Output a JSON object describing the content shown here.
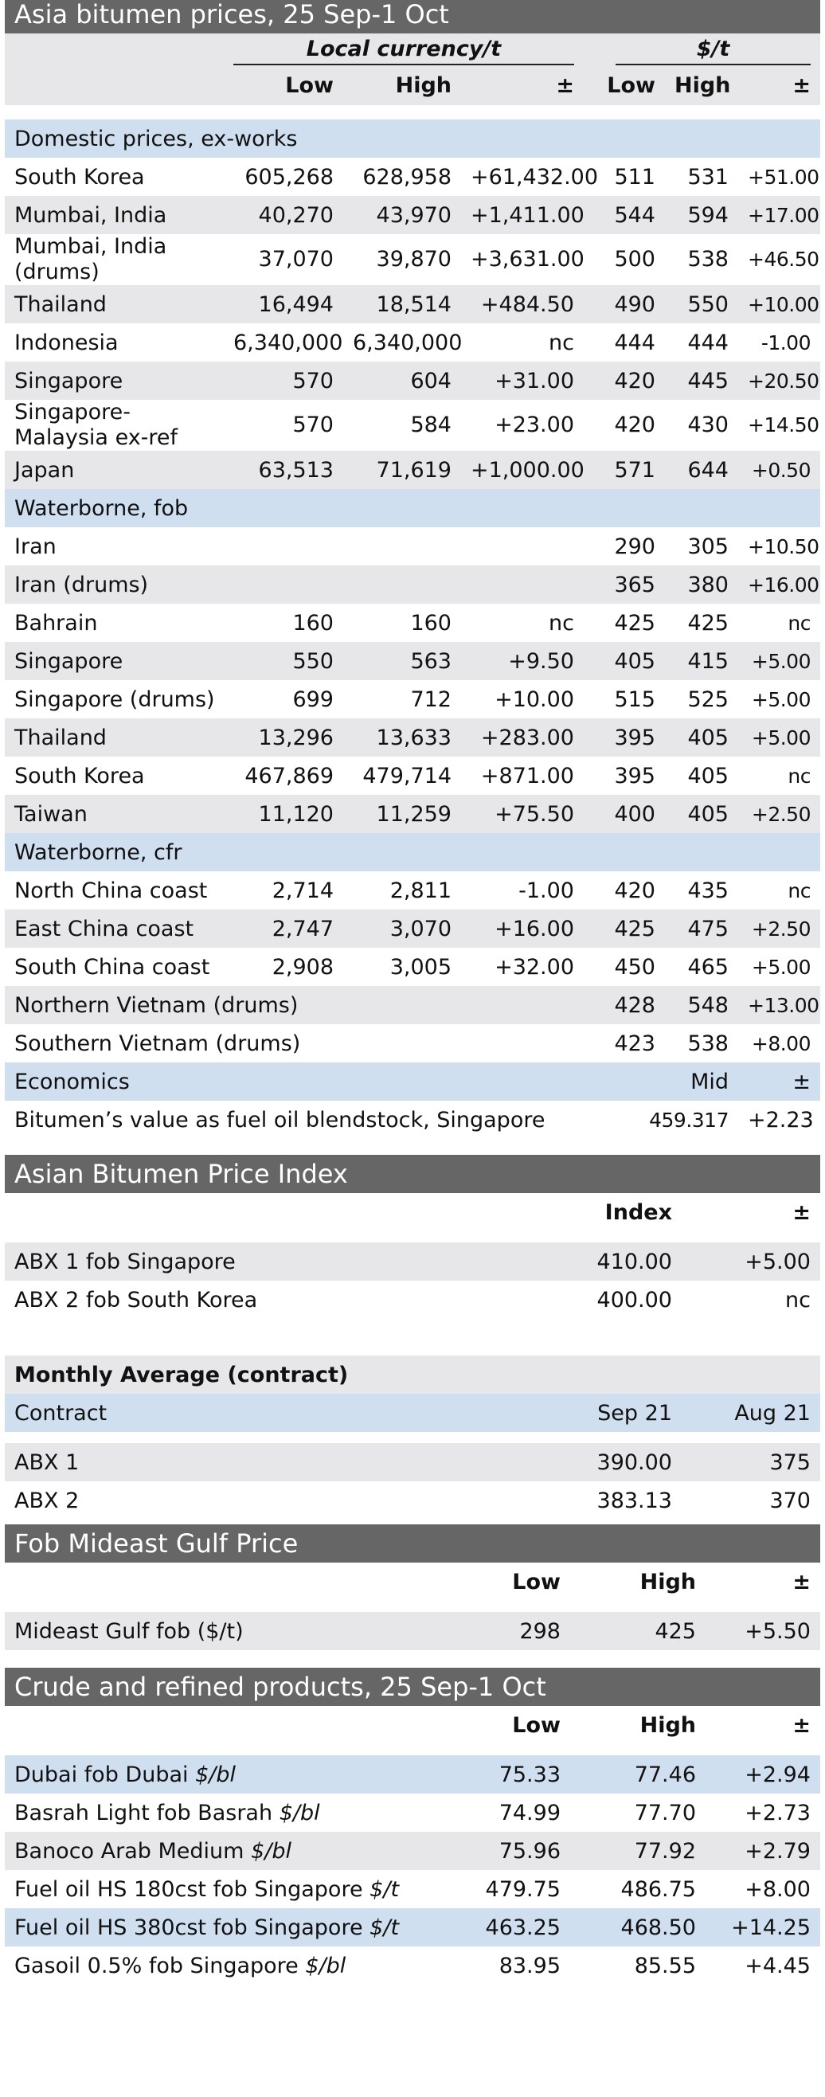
{
  "main": {
    "title": "Asia bitumen prices, 25 Sep-1 Oct",
    "group_local": "Local currency/t",
    "group_usd": "$/t",
    "col_low": "Low",
    "col_high": "High",
    "col_change": "±",
    "sections": [
      {
        "header": "Domestic prices, ex-works",
        "rows": [
          [
            "South Korea",
            "605,268",
            "628,958",
            "+61,432.00",
            "511",
            "531",
            "+51.00"
          ],
          [
            "Mumbai, India",
            "40,270",
            "43,970",
            "+1,411.00",
            "544",
            "594",
            "+17.00"
          ],
          [
            "Mumbai, India (drums)",
            "37,070",
            "39,870",
            "+3,631.00",
            "500",
            "538",
            "+46.50"
          ],
          [
            "Thailand",
            "16,494",
            "18,514",
            "+484.50",
            "490",
            "550",
            "+10.00"
          ],
          [
            "Indonesia",
            "6,340,000",
            "6,340,000",
            "nc",
            "444",
            "444",
            "-1.00"
          ],
          [
            "Singapore",
            "570",
            "604",
            "+31.00",
            "420",
            "445",
            "+20.50"
          ],
          [
            "Singapore-Malaysia ex-ref",
            "570",
            "584",
            "+23.00",
            "420",
            "430",
            "+14.50"
          ],
          [
            "Japan",
            "63,513",
            "71,619",
            "+1,000.00",
            "571",
            "644",
            "+0.50"
          ]
        ]
      },
      {
        "header": "Waterborne, fob",
        "rows": [
          [
            "Iran",
            "",
            "",
            "",
            "290",
            "305",
            "+10.50"
          ],
          [
            "Iran (drums)",
            "",
            "",
            "",
            "365",
            "380",
            "+16.00"
          ],
          [
            "Bahrain",
            "160",
            "160",
            "nc",
            "425",
            "425",
            "nc"
          ],
          [
            "Singapore",
            "550",
            "563",
            "+9.50",
            "405",
            "415",
            "+5.00"
          ],
          [
            "Singapore (drums)",
            "699",
            "712",
            "+10.00",
            "515",
            "525",
            "+5.00"
          ],
          [
            "Thailand",
            "13,296",
            "13,633",
            "+283.00",
            "395",
            "405",
            "+5.00"
          ],
          [
            "South Korea",
            "467,869",
            "479,714",
            "+871.00",
            "395",
            "405",
            "nc"
          ],
          [
            "Taiwan",
            "11,120",
            "11,259",
            "+75.50",
            "400",
            "405",
            "+2.50"
          ]
        ]
      },
      {
        "header": "Waterborne, cfr",
        "rows": [
          [
            "North China coast",
            "2,714",
            "2,811",
            "-1.00",
            "420",
            "435",
            "nc"
          ],
          [
            "East China coast",
            "2,747",
            "3,070",
            "+16.00",
            "425",
            "475",
            "+2.50"
          ],
          [
            "South China coast",
            "2,908",
            "3,005",
            "+32.00",
            "450",
            "465",
            "+5.00"
          ],
          [
            "Northern Vietnam (drums)",
            "",
            "",
            "",
            "428",
            "548",
            "+13.00"
          ],
          [
            "Southern Vietnam (drums)",
            "",
            "",
            "",
            "423",
            "538",
            "+8.00"
          ]
        ]
      }
    ],
    "economics": {
      "header": "Economics",
      "col_mid": "Mid",
      "col_change": "±",
      "row_label": "Bitumen’s value as fuel oil blendstock, Singapore",
      "row_mid": "459.317",
      "row_change": "+2.23"
    }
  },
  "abpi": {
    "title": "Asian Bitumen Price Index",
    "col_index": "Index",
    "col_change": "±",
    "rows": [
      [
        "ABX 1 fob Singapore",
        "410.00",
        "+5.00"
      ],
      [
        "ABX 2 fob South Korea",
        "400.00",
        "nc"
      ]
    ],
    "monthly_title": "Monthly Average (contract)",
    "monthly_col_contract": "Contract",
    "monthly_col_a": "Sep 21",
    "monthly_col_b": "Aug 21",
    "monthly_rows": [
      [
        "ABX 1",
        "390.00",
        "375"
      ],
      [
        "ABX 2",
        "383.13",
        "370"
      ]
    ]
  },
  "mideast": {
    "title": "Fob Mideast Gulf Price",
    "col_low": "Low",
    "col_high": "High",
    "col_change": "±",
    "rows": [
      [
        "Mideast Gulf fob ($/t)",
        "298",
        "425",
        "+5.50"
      ]
    ]
  },
  "crude": {
    "title": "Crude and refined products, 25 Sep-1 Oct",
    "col_low": "Low",
    "col_high": "High",
    "col_change": "±",
    "rows": [
      {
        "name": "Dubai fob Dubai",
        "unit": "$/bl",
        "low": "75.33",
        "high": "77.46",
        "chg": "+2.94",
        "bg": "blue"
      },
      {
        "name": "Basrah Light fob Basrah",
        "unit": "$/bl",
        "low": "74.99",
        "high": "77.70",
        "chg": "+2.73",
        "bg": "white"
      },
      {
        "name": "Banoco Arab Medium",
        "unit": "$/bl",
        "low": "75.96",
        "high": "77.92",
        "chg": "+2.79",
        "bg": "gray"
      },
      {
        "name": "Fuel oil HS 180cst fob Singapore",
        "unit": "$/t",
        "low": "479.75",
        "high": "486.75",
        "chg": "+8.00",
        "bg": "white"
      },
      {
        "name": "Fuel oil HS 380cst fob Singapore",
        "unit": "$/t",
        "low": "463.25",
        "high": "468.50",
        "chg": "+14.25",
        "bg": "blue"
      },
      {
        "name": "Gasoil 0.5% fob Singapore",
        "unit": "$/bl",
        "low": "83.95",
        "high": "85.55",
        "chg": "+4.45",
        "bg": "white"
      }
    ]
  }
}
